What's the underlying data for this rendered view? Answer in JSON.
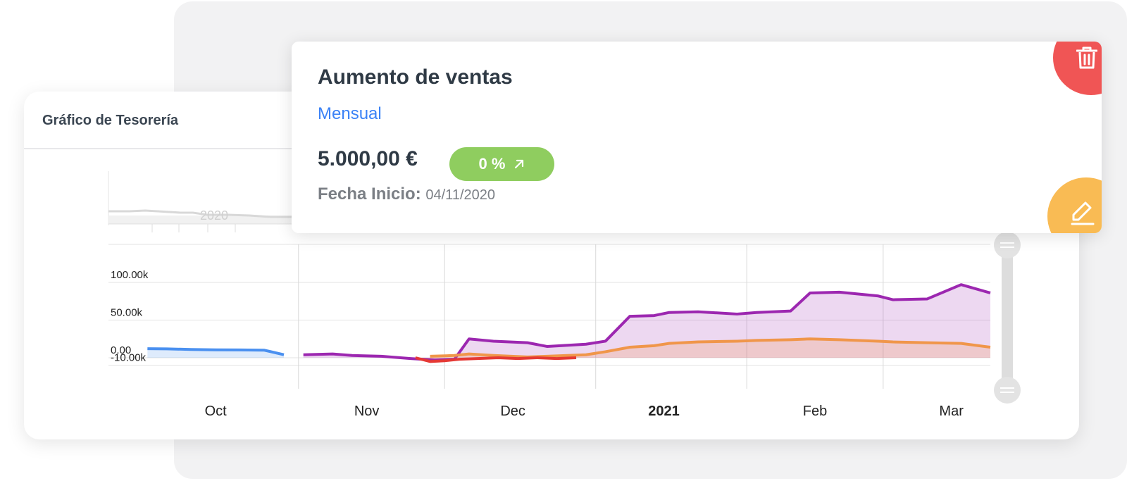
{
  "chart_card": {
    "title": "Gráfico de Tesorería"
  },
  "info_card": {
    "title": "Aumento de ventas",
    "period": "Mensual",
    "amount": "5.000,00 €",
    "percent": "0 %",
    "date_label": "Fecha Inicio:",
    "date_value": "04/11/2020"
  },
  "icons": {
    "delete": "trash-icon",
    "edit": "pencil-icon",
    "trend": "arrow-up-right-icon"
  },
  "colors": {
    "delete_button": "#f05555",
    "edit_button": "#f9bb54",
    "percent_badge": "#8fcd5f",
    "period_link": "#3b82f6"
  },
  "chart_data": {
    "type": "area",
    "title": "Gráfico de Tesorería",
    "xlabel": "",
    "ylabel": "",
    "ylim": [
      -10000,
      130000
    ],
    "yticks": [
      "100.00k",
      "50.00k",
      "0.00",
      "-10.00k"
    ],
    "x_labels": [
      "Oct",
      "Nov",
      "Dec",
      "2021",
      "Feb",
      "Mar"
    ],
    "navigator_label": "2020",
    "grid": true,
    "series": [
      {
        "color": "#4a90f0",
        "x": [
          "2020-10-01",
          "2020-10-05",
          "2020-10-10",
          "2020-10-15",
          "2020-10-20",
          "2020-10-25",
          "2020-10-29"
        ],
        "values": [
          12000,
          11800,
          11000,
          10500,
          10400,
          10000,
          4000
        ]
      },
      {
        "color": "#9c27b0",
        "x": [
          "2020-11-02",
          "2020-11-08",
          "2020-11-12",
          "2020-11-18",
          "2020-11-24",
          "2020-11-29",
          "2020-12-03",
          "2020-12-06",
          "2020-12-11",
          "2020-12-18",
          "2020-12-22",
          "2020-12-30",
          "2021-01-03",
          "2021-01-08",
          "2021-01-13",
          "2021-01-16",
          "2021-01-22",
          "2021-01-30",
          "2021-02-03",
          "2021-02-10",
          "2021-02-14",
          "2021-02-20",
          "2021-02-28",
          "2021-03-03",
          "2021-03-10",
          "2021-03-17",
          "2021-03-23"
        ],
        "values": [
          4000,
          5000,
          3000,
          2000,
          -1000,
          -3000,
          -2000,
          25000,
          22000,
          20000,
          15000,
          18000,
          22000,
          55000,
          56000,
          60000,
          61000,
          58000,
          60000,
          62000,
          86000,
          87000,
          82000,
          77000,
          78000,
          97000,
          86000
        ]
      },
      {
        "color": "#f0964a",
        "x": [
          "2020-11-28",
          "2020-12-03",
          "2020-12-06",
          "2020-12-11",
          "2020-12-18",
          "2020-12-22",
          "2020-12-30",
          "2021-01-03",
          "2021-01-08",
          "2021-01-13",
          "2021-01-16",
          "2021-01-22",
          "2021-01-30",
          "2021-02-03",
          "2021-02-10",
          "2021-02-14",
          "2021-02-20",
          "2021-02-28",
          "2021-03-03",
          "2021-03-10",
          "2021-03-17",
          "2021-03-23"
        ],
        "values": [
          2000,
          3000,
          5000,
          3000,
          1000,
          2000,
          4000,
          8000,
          14000,
          16000,
          19000,
          21000,
          22000,
          23000,
          24000,
          25000,
          24000,
          22000,
          21000,
          20000,
          19000,
          14000
        ]
      },
      {
        "color": "#e53935",
        "x": [
          "2020-11-25",
          "2020-11-28",
          "2020-12-01",
          "2020-12-04",
          "2020-12-12",
          "2020-12-16",
          "2020-12-20",
          "2020-12-24",
          "2020-12-28"
        ],
        "values": [
          0,
          -5000,
          -4000,
          -2000,
          0,
          -1000,
          0,
          -1000,
          0
        ]
      }
    ]
  }
}
